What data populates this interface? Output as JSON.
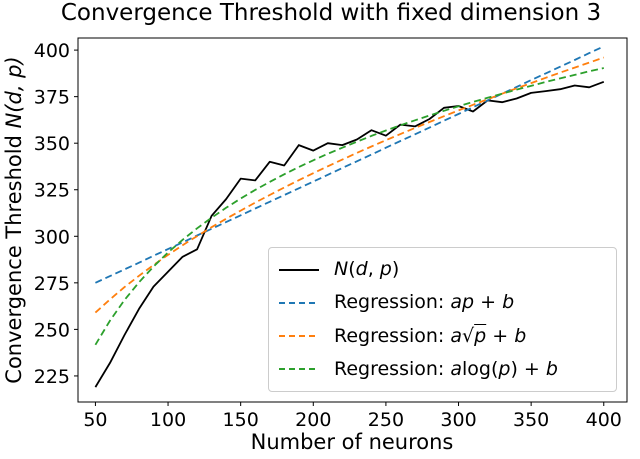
{
  "chart_data": {
    "type": "line",
    "title": "Convergence Threshold with fixed dimension 3",
    "xlabel": "Number of neurons",
    "ylabel": "Convergence Threshold N(d, p)",
    "xlim": [
      38,
      416
    ],
    "ylim": [
      211,
      406.5
    ],
    "xticks": [
      50,
      100,
      150,
      200,
      250,
      300,
      350,
      400
    ],
    "yticks": [
      225,
      250,
      275,
      300,
      325,
      350,
      375,
      400
    ],
    "grid": false,
    "legend_position": "lower right",
    "x": [
      50,
      60,
      70,
      80,
      90,
      100,
      110,
      120,
      130,
      140,
      150,
      160,
      170,
      180,
      190,
      200,
      210,
      220,
      230,
      240,
      250,
      260,
      270,
      280,
      290,
      300,
      310,
      320,
      330,
      340,
      350,
      360,
      370,
      380,
      390,
      400
    ],
    "series": [
      {
        "key": "ndp",
        "name": "N(d, p)",
        "color": "#000000",
        "linestyle": "solid",
        "values": [
          219,
          232,
          247,
          261,
          273,
          281,
          289,
          293,
          311,
          320,
          331,
          330,
          340,
          338,
          349,
          346,
          350,
          349,
          352,
          357,
          354,
          360,
          359,
          363,
          369,
          370,
          367,
          373,
          372,
          374,
          377,
          378,
          379,
          381,
          380,
          383
        ]
      },
      {
        "key": "reg-linear",
        "name": "Regression: ap + b",
        "color": "#1f77b4",
        "linestyle": "dashed",
        "values": [
          275.0,
          278.6,
          282.2,
          285.8,
          289.5,
          293.1,
          296.7,
          300.4,
          304.0,
          307.6,
          311.3,
          314.9,
          318.5,
          322.1,
          325.8,
          329.4,
          333.0,
          336.7,
          340.3,
          343.9,
          347.6,
          351.2,
          354.8,
          358.4,
          362.1,
          365.7,
          369.3,
          373.0,
          376.6,
          380.2,
          383.9,
          387.5,
          391.1,
          394.7,
          398.4,
          402.0
        ]
      },
      {
        "key": "reg-sqrt",
        "name": "Regression: a√p + b",
        "color": "#ff7f0e",
        "linestyle": "dashed",
        "values": [
          259.0,
          266.1,
          272.7,
          278.8,
          284.6,
          290.0,
          295.2,
          300.1,
          304.9,
          309.4,
          313.8,
          318.1,
          322.2,
          326.2,
          330.1,
          333.9,
          337.6,
          341.2,
          344.8,
          348.2,
          351.6,
          354.9,
          358.2,
          361.4,
          364.5,
          367.6,
          370.6,
          373.6,
          376.6,
          379.5,
          382.3,
          385.1,
          387.9,
          390.6,
          393.3,
          396.0
        ]
      },
      {
        "key": "reg-log",
        "name": "Regression: alog(p) + b",
        "color": "#2ca02c",
        "linestyle": "dashed",
        "values": [
          241.7,
          254.7,
          265.8,
          275.3,
          283.7,
          291.3,
          298.1,
          304.3,
          310.0,
          315.3,
          320.3,
          324.9,
          329.2,
          333.3,
          337.2,
          340.8,
          344.3,
          347.6,
          350.8,
          353.9,
          356.8,
          359.6,
          362.3,
          364.9,
          367.4,
          369.8,
          372.2,
          374.4,
          376.6,
          378.8,
          380.8,
          382.9,
          384.8,
          386.7,
          388.6,
          390.4
        ]
      }
    ]
  },
  "labels": {
    "ylabel_prefix": "Convergence Threshold ",
    "ylabel_math": "N(d, p)"
  },
  "legend": {
    "items": [
      {
        "key": "ndp",
        "color": "#000000",
        "dash": null,
        "segments": [
          {
            "t": "N",
            "i": 1
          },
          {
            "t": "(",
            "i": 0
          },
          {
            "t": "d",
            "i": 1
          },
          {
            "t": ", ",
            "i": 0
          },
          {
            "t": "p",
            "i": 1
          },
          {
            "t": ")",
            "i": 0
          }
        ]
      },
      {
        "key": "reg-linear",
        "color": "#1f77b4",
        "dash": "6,4",
        "segments": [
          {
            "t": "Regression: ",
            "i": 0
          },
          {
            "t": "ap",
            "i": 1
          },
          {
            "t": " + ",
            "i": 0
          },
          {
            "t": "b",
            "i": 1
          }
        ]
      },
      {
        "key": "reg-sqrt",
        "color": "#ff7f0e",
        "dash": "6,4",
        "segments": [
          {
            "t": "Regression: ",
            "i": 0
          },
          {
            "t": "a",
            "i": 1
          },
          {
            "t": "√",
            "i": 0
          },
          {
            "t": "p",
            "i": 2
          },
          {
            "t": " + ",
            "i": 0
          },
          {
            "t": "b",
            "i": 1
          }
        ]
      },
      {
        "key": "reg-log",
        "color": "#2ca02c",
        "dash": "6,4",
        "segments": [
          {
            "t": "Regression: ",
            "i": 0
          },
          {
            "t": "a",
            "i": 1
          },
          {
            "t": "log(",
            "i": 0
          },
          {
            "t": "p",
            "i": 1
          },
          {
            "t": ") + ",
            "i": 0
          },
          {
            "t": "b",
            "i": 1
          }
        ]
      }
    ]
  }
}
